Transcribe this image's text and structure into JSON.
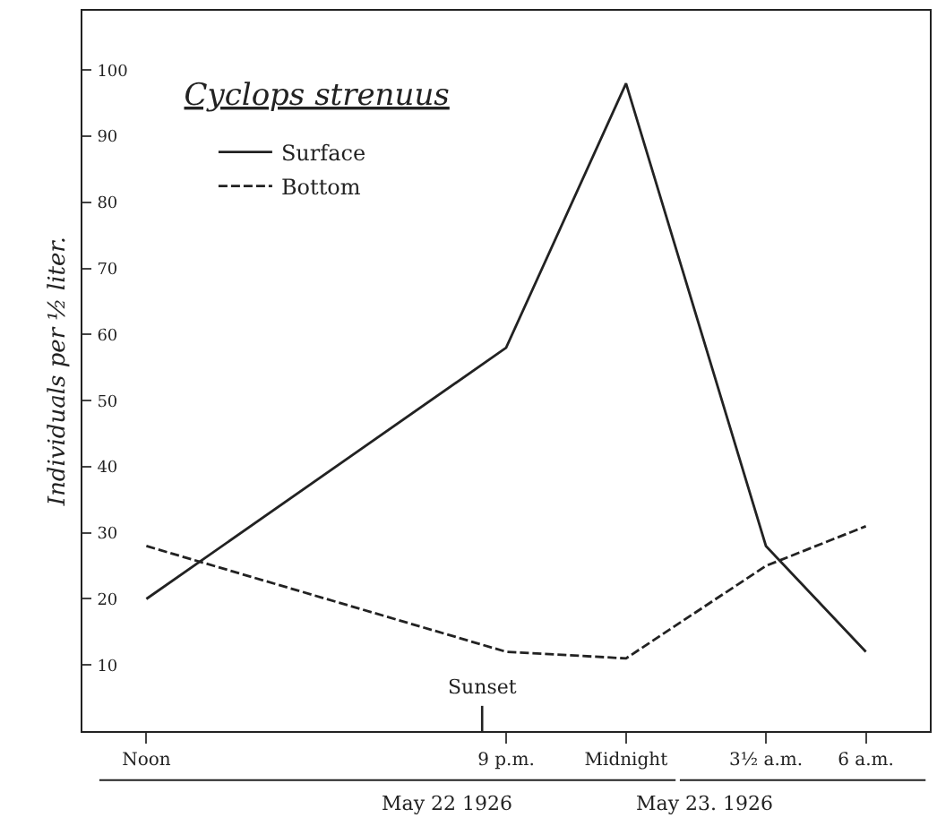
{
  "chart_data": {
    "type": "line",
    "title": "Cyclops strenuus",
    "ylabel": "Individuals per ½ liter.",
    "series": [
      {
        "name": "Surface",
        "color": "#222222",
        "line_style": "solid",
        "x": [
          "1926-05-22T12:00",
          "1926-05-22T21:00",
          "1926-05-23T00:00",
          "1926-05-23T03:30",
          "1926-05-23T06:00"
        ],
        "values": [
          20,
          58,
          98,
          28,
          12
        ]
      },
      {
        "name": "Bottom",
        "color": "#222222",
        "line_style": "dashed",
        "x": [
          "1926-05-22T12:00",
          "1926-05-22T21:00",
          "1926-05-23T00:00",
          "1926-05-23T03:30",
          "1926-05-23T06:00"
        ],
        "values": [
          28,
          12,
          11,
          25,
          31
        ]
      }
    ],
    "xlim": [
      "1926-05-22T10:24",
      "1926-05-23T07:36"
    ],
    "xticks": [
      {
        "value": "1926-05-22T12:00",
        "label": "Noon"
      },
      {
        "value": "1926-05-22T21:00",
        "label": "9 p.m."
      },
      {
        "value": "1926-05-23T00:00",
        "label": "Midnight"
      },
      {
        "value": "1926-05-23T03:30",
        "label": "3½ a.m."
      },
      {
        "value": "1926-05-23T06:00",
        "label": "6 a.m."
      }
    ],
    "ylim": [
      0,
      109
    ],
    "yticks": [
      10,
      20,
      30,
      40,
      50,
      60,
      70,
      80,
      90,
      100
    ],
    "ref_lines": [
      {
        "axis": "x",
        "value": "1926-05-22T20:24",
        "label": "Sunset"
      }
    ],
    "annotations": [
      "May 22 1926",
      "May 23. 1926"
    ],
    "grid": false,
    "legend": "top left",
    "marker": "none"
  }
}
